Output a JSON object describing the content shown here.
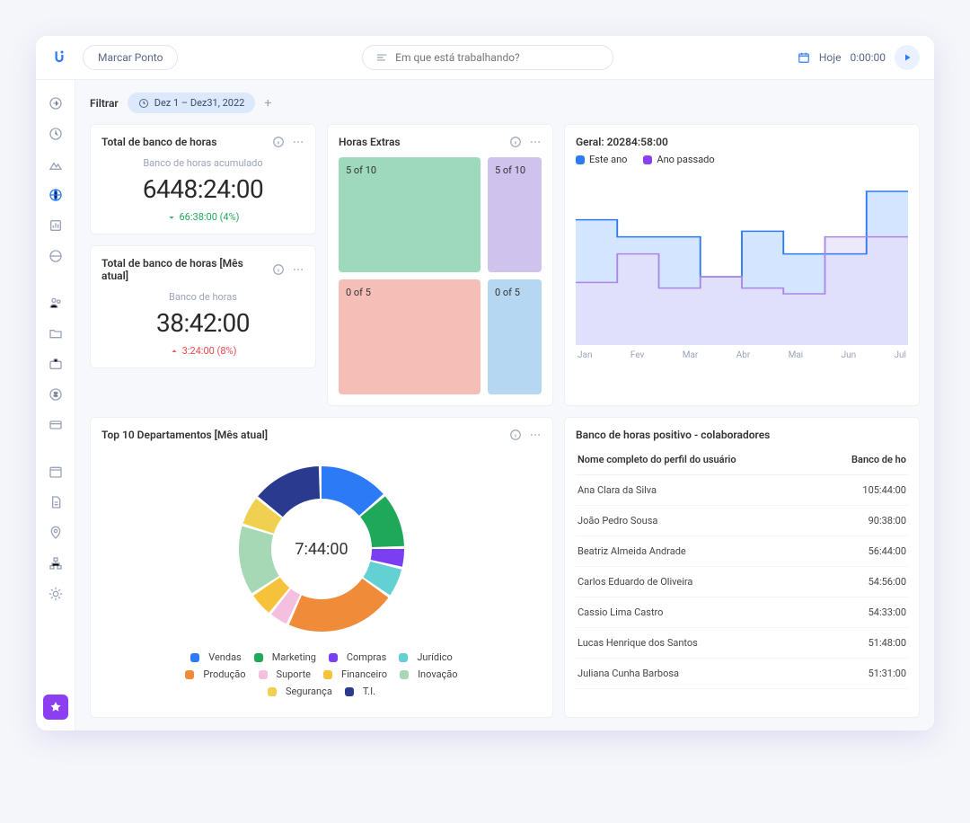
{
  "topbar": {
    "marcar_label": "Marcar Ponto",
    "search_placeholder": "Em que está trabalhando?",
    "hoje_label": "Hoje",
    "timer": "0:00:00"
  },
  "filter": {
    "label": "Filtrar",
    "date_range": "Dez 1 – Dez31, 2022"
  },
  "card_total": {
    "title": "Total de banco de horas",
    "subtitle": "Banco de horas acumulado",
    "value": "6448:24:00",
    "delta": "66:38:00 (4%)",
    "delta_dir": "down",
    "delta_color": "#1fa85a"
  },
  "card_total_month": {
    "title": "Total de banco de horas [Mês atual]",
    "subtitle": "Banco de horas",
    "value": "38:42:00",
    "delta": "3:24:00 (8%)",
    "delta_dir": "up",
    "delta_color": "#e7484f"
  },
  "card_extras": {
    "title": "Horas Extras",
    "cells": [
      {
        "label": "5 of 10",
        "bg": "#9ed9bb"
      },
      {
        "label": "5 of 10",
        "bg": "#cfc2ec"
      },
      {
        "label": "0 of 5",
        "bg": "#f5bfb8"
      },
      {
        "label": "0 of 5",
        "bg": "#b6d7f2"
      }
    ]
  },
  "card_geral": {
    "title": "Geral: 20284:58:00",
    "legend": [
      {
        "label": "Este ano",
        "color": "#2d7af6"
      },
      {
        "label": "Ano passado",
        "color": "#8b3ff0"
      }
    ],
    "months": [
      "Jan",
      "Fev",
      "Mar",
      "Abr",
      "Mai",
      "Jun",
      "Jul"
    ],
    "series_current": [
      110,
      95,
      95,
      60,
      100,
      80,
      80,
      135
    ],
    "series_past": [
      55,
      80,
      50,
      60,
      50,
      45,
      95,
      95
    ],
    "current_fill": "#cfe2ff",
    "current_stroke": "#2d7af6",
    "past_fill": "#e7defa",
    "past_stroke": "#a987e8",
    "ymax": 150
  },
  "card_donut": {
    "title": "Top 10 Departamentos [Mês atual]",
    "center": "7:44:00",
    "segments": [
      {
        "label": "Vendas",
        "color": "#2d7af6",
        "value": 14
      },
      {
        "label": "Marketing",
        "color": "#1fa85a",
        "value": 11
      },
      {
        "label": "Compras",
        "color": "#7a3ff0",
        "value": 4
      },
      {
        "label": "Jurídico",
        "color": "#63d1d4",
        "value": 6
      },
      {
        "label": "Produção",
        "color": "#f08b3a",
        "value": 22
      },
      {
        "label": "Suporte",
        "color": "#f5bfe0",
        "value": 4
      },
      {
        "label": "Financeiro",
        "color": "#f5c23a",
        "value": 5
      },
      {
        "label": "Inovação",
        "color": "#a6d8b6",
        "value": 14
      },
      {
        "label": "Segurança",
        "color": "#f0d050",
        "value": 6
      },
      {
        "label": "T.I.",
        "color": "#2a3a8f",
        "value": 14
      }
    ]
  },
  "card_table": {
    "title": "Banco de horas positivo - colaboradores",
    "col1": "Nome completo do perfil do usuário",
    "col2": "Banco de ho",
    "rows": [
      {
        "name": "Ana Clara da Silva",
        "hours": "105:44:00"
      },
      {
        "name": "João Pedro Sousa",
        "hours": "90:38:00"
      },
      {
        "name": "Beatriz Almeida Andrade",
        "hours": "56:44:00"
      },
      {
        "name": "Carlos Eduardo de Oliveira",
        "hours": "54:56:00"
      },
      {
        "name": "Cassio Lima Castro",
        "hours": "54:33:00"
      },
      {
        "name": "Lucas Henrique dos Santos",
        "hours": "51:48:00"
      },
      {
        "name": "Juliana Cunha Barbosa",
        "hours": "51:31:00"
      }
    ]
  }
}
